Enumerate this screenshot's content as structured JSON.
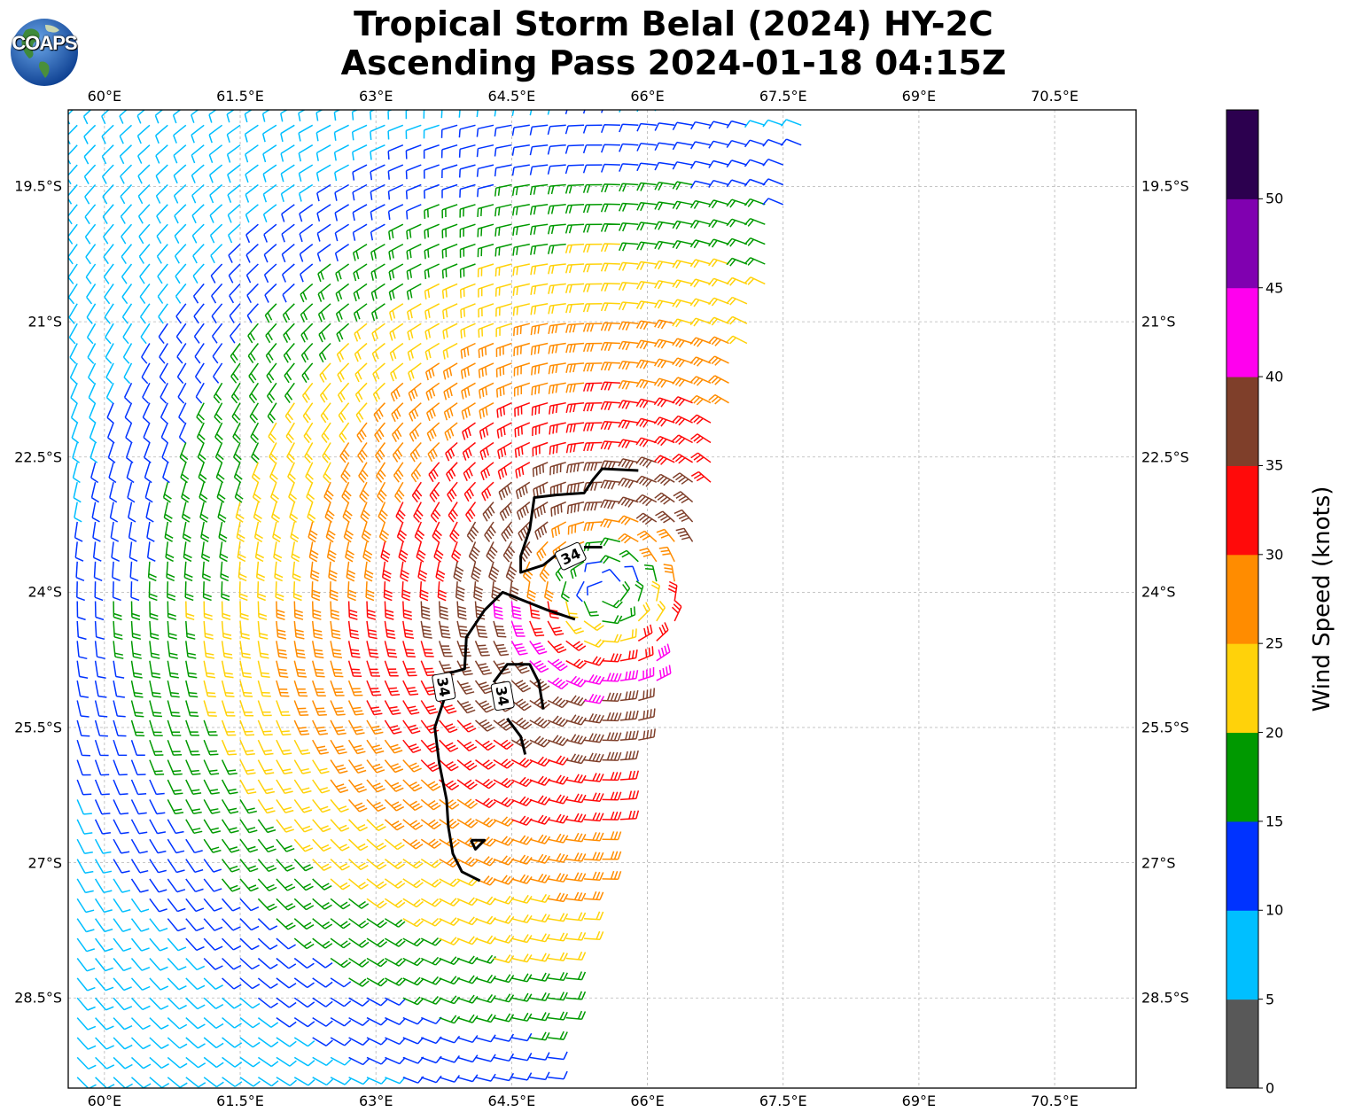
{
  "title": {
    "line1": "Tropical Storm Belal (2024) HY-2C",
    "line2": "Ascending Pass 2024-01-18 04:15Z"
  },
  "logo": {
    "text": "COAPS",
    "icon": "earth-globe-icon"
  },
  "map": {
    "lon_range": [
      59.6,
      71.4
    ],
    "lat_range": [
      -29.5,
      -18.65
    ],
    "x_ticks": [
      "60°E",
      "61.5°E",
      "63°E",
      "64.5°E",
      "66°E",
      "67.5°E",
      "69°E",
      "70.5°E"
    ],
    "x_tick_values": [
      60,
      61.5,
      63,
      64.5,
      66,
      67.5,
      69,
      70.5
    ],
    "y_ticks": [
      "19.5°S",
      "21°S",
      "22.5°S",
      "24°S",
      "25.5°S",
      "27°S",
      "28.5°S"
    ],
    "y_tick_values": [
      -19.5,
      -21,
      -22.5,
      -24,
      -25.5,
      -27,
      -28.5
    ],
    "grid": true,
    "contour_labels": [
      "34",
      "34",
      "34"
    ]
  },
  "colorbar": {
    "label": "Wind Speed (knots)",
    "ticks": [
      "0",
      "5",
      "10",
      "15",
      "20",
      "25",
      "30",
      "35",
      "40",
      "45",
      "50"
    ],
    "bounds": [
      0,
      5,
      10,
      15,
      20,
      25,
      30,
      35,
      40,
      45,
      50,
      55
    ],
    "colors": [
      "#585858",
      "#00bfff",
      "#0033ff",
      "#009900",
      "#ffd20a",
      "#ff8c00",
      "#ff0a0a",
      "#7f3f2a",
      "#ff00ee",
      "#8000b0",
      "#2c004f"
    ]
  }
}
